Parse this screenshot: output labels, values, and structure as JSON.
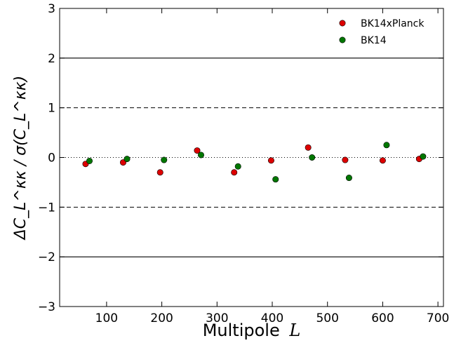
{
  "chart_data": {
    "type": "scatter",
    "xlabel": "Multipole",
    "xlabel_symbol": "L",
    "ylabel": "ΔC_L^κκ / σ(C_L^κκ)",
    "xlim": [
      15,
      710
    ],
    "ylim": [
      -3,
      3
    ],
    "xticks": [
      100,
      200,
      300,
      400,
      500,
      600,
      700
    ],
    "yticks": [
      -3,
      -2,
      -1,
      0,
      1,
      2,
      3
    ],
    "xtick_labels": [
      "100",
      "200",
      "300",
      "400",
      "500",
      "600",
      "700"
    ],
    "ytick_labels": [
      "−3",
      "−2",
      "−1",
      "0",
      "1",
      "2",
      "3"
    ],
    "reference_lines": [
      {
        "y": 2,
        "style": "solid"
      },
      {
        "y": -2,
        "style": "solid"
      },
      {
        "y": 1,
        "style": "dashed"
      },
      {
        "y": -1,
        "style": "dashed"
      },
      {
        "y": 0,
        "style": "dotted"
      }
    ],
    "legend_position": "top-right",
    "series": [
      {
        "name": "BK14xPlanck",
        "color": "#dd0000",
        "x": [
          62,
          130,
          197,
          264,
          331,
          398,
          465,
          532,
          600,
          666
        ],
        "y": [
          -0.13,
          -0.1,
          -0.3,
          0.14,
          -0.3,
          -0.06,
          0.2,
          -0.05,
          -0.06,
          -0.03
        ]
      },
      {
        "name": "BK14",
        "color": "#007700",
        "x": [
          69,
          137,
          204,
          271,
          338,
          406,
          472,
          539,
          607,
          673
        ],
        "y": [
          -0.07,
          -0.03,
          -0.05,
          0.05,
          -0.18,
          -0.44,
          0.0,
          -0.41,
          0.25,
          0.02
        ]
      }
    ]
  }
}
